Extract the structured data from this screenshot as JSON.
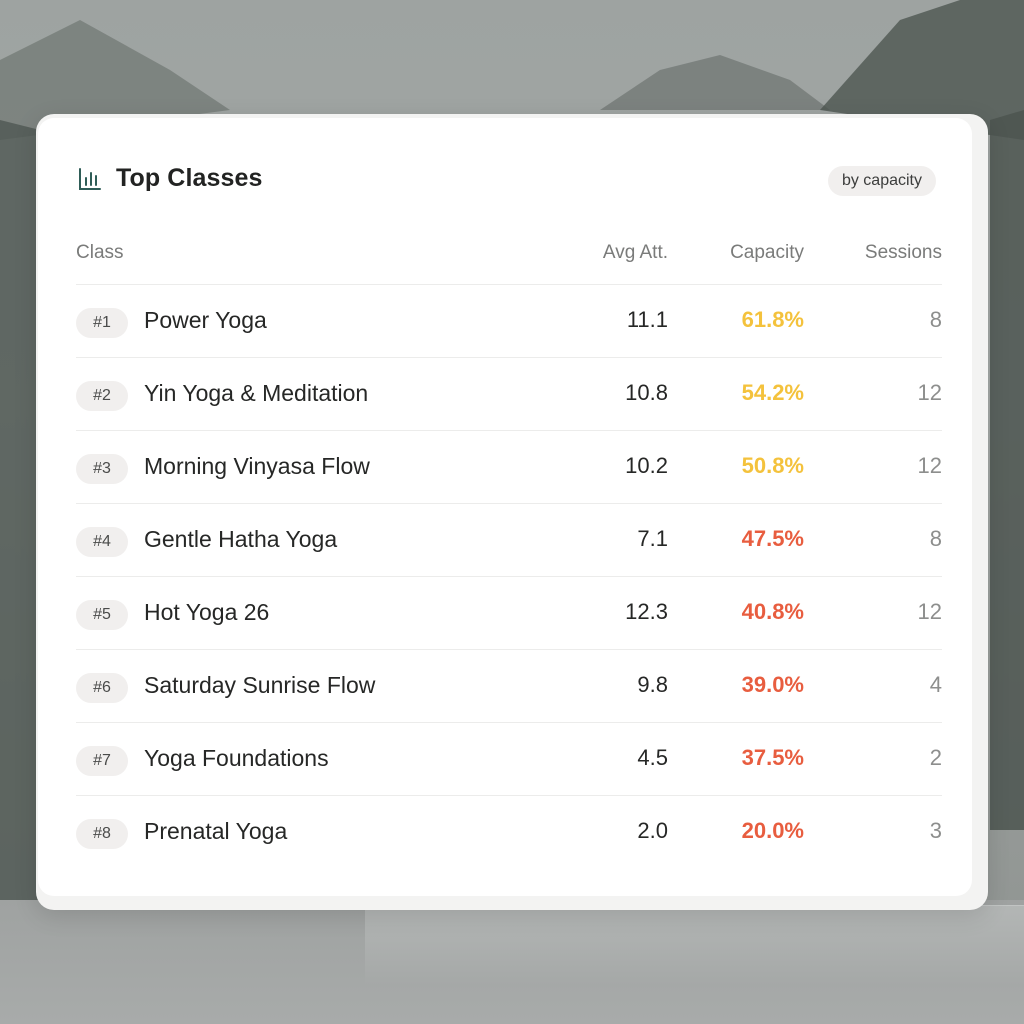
{
  "widget": {
    "title": "Top Classes",
    "title_icon": "bar-chart-icon",
    "sort_badge": "by capacity",
    "colors": {
      "capacity_mid": "#f4c23c",
      "capacity_low": "#e85d3f",
      "icon": "#2f5d57"
    }
  },
  "table": {
    "columns": {
      "class": "Class",
      "avg": "Avg Att.",
      "capacity": "Capacity",
      "sessions": "Sessions"
    },
    "rows": [
      {
        "rank": "#1",
        "name": "Power Yoga",
        "avg": "11.1",
        "capacity": "61.8%",
        "level": "mid",
        "sessions": "8"
      },
      {
        "rank": "#2",
        "name": "Yin Yoga & Meditation",
        "avg": "10.8",
        "capacity": "54.2%",
        "level": "mid",
        "sessions": "12"
      },
      {
        "rank": "#3",
        "name": "Morning Vinyasa Flow",
        "avg": "10.2",
        "capacity": "50.8%",
        "level": "mid",
        "sessions": "12"
      },
      {
        "rank": "#4",
        "name": "Gentle Hatha Yoga",
        "avg": "7.1",
        "capacity": "47.5%",
        "level": "low",
        "sessions": "8"
      },
      {
        "rank": "#5",
        "name": "Hot Yoga 26",
        "avg": "12.3",
        "capacity": "40.8%",
        "level": "low",
        "sessions": "12"
      },
      {
        "rank": "#6",
        "name": "Saturday Sunrise Flow",
        "avg": "9.8",
        "capacity": "39.0%",
        "level": "low",
        "sessions": "4"
      },
      {
        "rank": "#7",
        "name": "Yoga Foundations",
        "avg": "4.5",
        "capacity": "37.5%",
        "level": "low",
        "sessions": "2"
      },
      {
        "rank": "#8",
        "name": "Prenatal Yoga",
        "avg": "2.0",
        "capacity": "20.0%",
        "level": "low",
        "sessions": "3"
      }
    ]
  }
}
